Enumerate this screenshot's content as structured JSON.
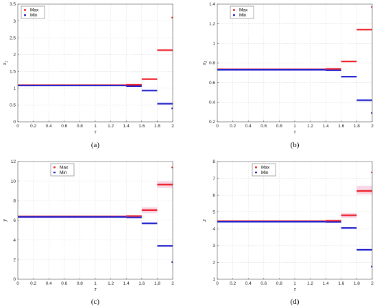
{
  "colors": {
    "max": "#ee1c25",
    "min": "#1f1fcc",
    "grid": "#dcdcdc",
    "band": "#f5c9de"
  },
  "chart_data": [
    {
      "type": "line",
      "panel_label": "(a)",
      "xlabel": "τ",
      "ylabel": "x",
      "ylabel_sub": "1",
      "xlim": [
        0,
        2
      ],
      "ylim": [
        0,
        3.5
      ],
      "xticks": [
        "0",
        "0.2",
        "0.4",
        "0.6",
        "0.8",
        "1",
        "1.2",
        "1.4",
        "1.6",
        "1.8",
        "2"
      ],
      "yticks": [
        "0",
        "0.5",
        "1",
        "1.5",
        "2",
        "2.5",
        "3",
        "3.5"
      ],
      "legend": [
        "Max",
        "Min"
      ],
      "legend_position": "top-left",
      "grid": true,
      "series": [
        {
          "name": "Max",
          "segments": [
            [
              0,
              1.4,
              1.09
            ],
            [
              1.4,
              1.6,
              1.1
            ],
            [
              1.6,
              1.8,
              1.27
            ],
            [
              1.8,
              2.0,
              2.13
            ]
          ],
          "end_point": [
            2.0,
            3.1
          ]
        },
        {
          "name": "Min",
          "segments": [
            [
              0,
              1.4,
              1.08
            ],
            [
              1.4,
              1.6,
              1.06
            ],
            [
              1.6,
              1.8,
              0.93
            ],
            [
              1.8,
              2.0,
              0.54
            ]
          ],
          "end_point": [
            2.0,
            0.4
          ]
        }
      ],
      "bands": []
    },
    {
      "type": "line",
      "panel_label": "(b)",
      "xlabel": "τ",
      "ylabel": "x",
      "ylabel_sub": "2",
      "xlim": [
        0,
        2
      ],
      "ylim": [
        0.2,
        1.4
      ],
      "xticks": [
        "0",
        "0.2",
        "0.4",
        "0.6",
        "0.8",
        "1",
        "1.2",
        "1.4",
        "1.6",
        "1.8",
        "2"
      ],
      "yticks": [
        "0.2",
        "0.4",
        "0.6",
        "0.8",
        "1",
        "1.2",
        "1.4"
      ],
      "legend": [
        "Max",
        "Min"
      ],
      "legend_position": "top-left",
      "grid": true,
      "series": [
        {
          "name": "Max",
          "segments": [
            [
              0,
              1.4,
              0.735
            ],
            [
              1.4,
              1.6,
              0.74
            ],
            [
              1.6,
              1.8,
              0.815
            ],
            [
              1.8,
              2.0,
              1.14
            ]
          ],
          "end_point": [
            2.0,
            1.37
          ]
        },
        {
          "name": "Min",
          "segments": [
            [
              0,
              1.4,
              0.73
            ],
            [
              1.4,
              1.6,
              0.725
            ],
            [
              1.6,
              1.8,
              0.66
            ],
            [
              1.8,
              2.0,
              0.42
            ]
          ],
          "end_point": [
            2.0,
            0.29
          ]
        }
      ],
      "bands": []
    },
    {
      "type": "line",
      "panel_label": "(c)",
      "xlabel": "τ",
      "ylabel": "y",
      "ylabel_sub": "",
      "xlim": [
        0,
        2
      ],
      "ylim": [
        0,
        12
      ],
      "xticks": [
        "0",
        "0.2",
        "0.4",
        "0.6",
        "0.8",
        "1",
        "1.2",
        "1.4",
        "1.6",
        "1.8",
        "2"
      ],
      "yticks": [
        "0",
        "2",
        "4",
        "6",
        "8",
        "10",
        "12"
      ],
      "legend": [
        "Max",
        "Min"
      ],
      "legend_position": "top-left",
      "grid": true,
      "series": [
        {
          "name": "Max",
          "segments": [
            [
              0,
              1.4,
              6.4
            ],
            [
              1.4,
              1.6,
              6.45
            ],
            [
              1.6,
              1.8,
              7.05
            ],
            [
              1.8,
              2.0,
              9.65
            ]
          ],
          "end_point": [
            2.0,
            11.4
          ]
        },
        {
          "name": "Min",
          "segments": [
            [
              0,
              1.4,
              6.35
            ],
            [
              1.4,
              1.6,
              6.3
            ],
            [
              1.6,
              1.8,
              5.7
            ],
            [
              1.8,
              2.0,
              3.4
            ]
          ],
          "end_point": [
            2.0,
            1.75
          ]
        }
      ],
      "bands": [
        [
          1.6,
          1.8,
          6.75,
          7.35
        ],
        [
          1.8,
          2.0,
          9.3,
          10.0
        ]
      ]
    },
    {
      "type": "line",
      "panel_label": "(d)",
      "xlabel": "τ",
      "ylabel": "z",
      "ylabel_sub": "",
      "xlim": [
        0,
        2
      ],
      "ylim": [
        1,
        8
      ],
      "xticks": [
        "0",
        "0.2",
        "0.4",
        "0.6",
        "0.8",
        "1",
        "1.2",
        "1.4",
        "1.6",
        "1.8",
        "2"
      ],
      "yticks": [
        "1",
        "2",
        "3",
        "4",
        "5",
        "6",
        "7",
        "8"
      ],
      "legend": [
        "Max",
        "Min"
      ],
      "legend_position": "top-left",
      "grid": true,
      "series": [
        {
          "name": "Max",
          "segments": [
            [
              0,
              1.4,
              4.45
            ],
            [
              1.4,
              1.6,
              4.48
            ],
            [
              1.6,
              1.8,
              4.8
            ],
            [
              1.8,
              2.0,
              6.25
            ]
          ],
          "end_point": [
            2.0,
            7.35
          ]
        },
        {
          "name": "Min",
          "segments": [
            [
              0,
              1.4,
              4.42
            ],
            [
              1.4,
              1.6,
              4.4
            ],
            [
              1.6,
              1.8,
              4.05
            ],
            [
              1.8,
              2.0,
              2.75
            ]
          ],
          "end_point": [
            2.0,
            1.75
          ]
        }
      ],
      "bands": [
        [
          1.6,
          1.8,
          4.65,
          4.95
        ],
        [
          1.8,
          2.0,
          6.05,
          6.55
        ]
      ]
    }
  ]
}
